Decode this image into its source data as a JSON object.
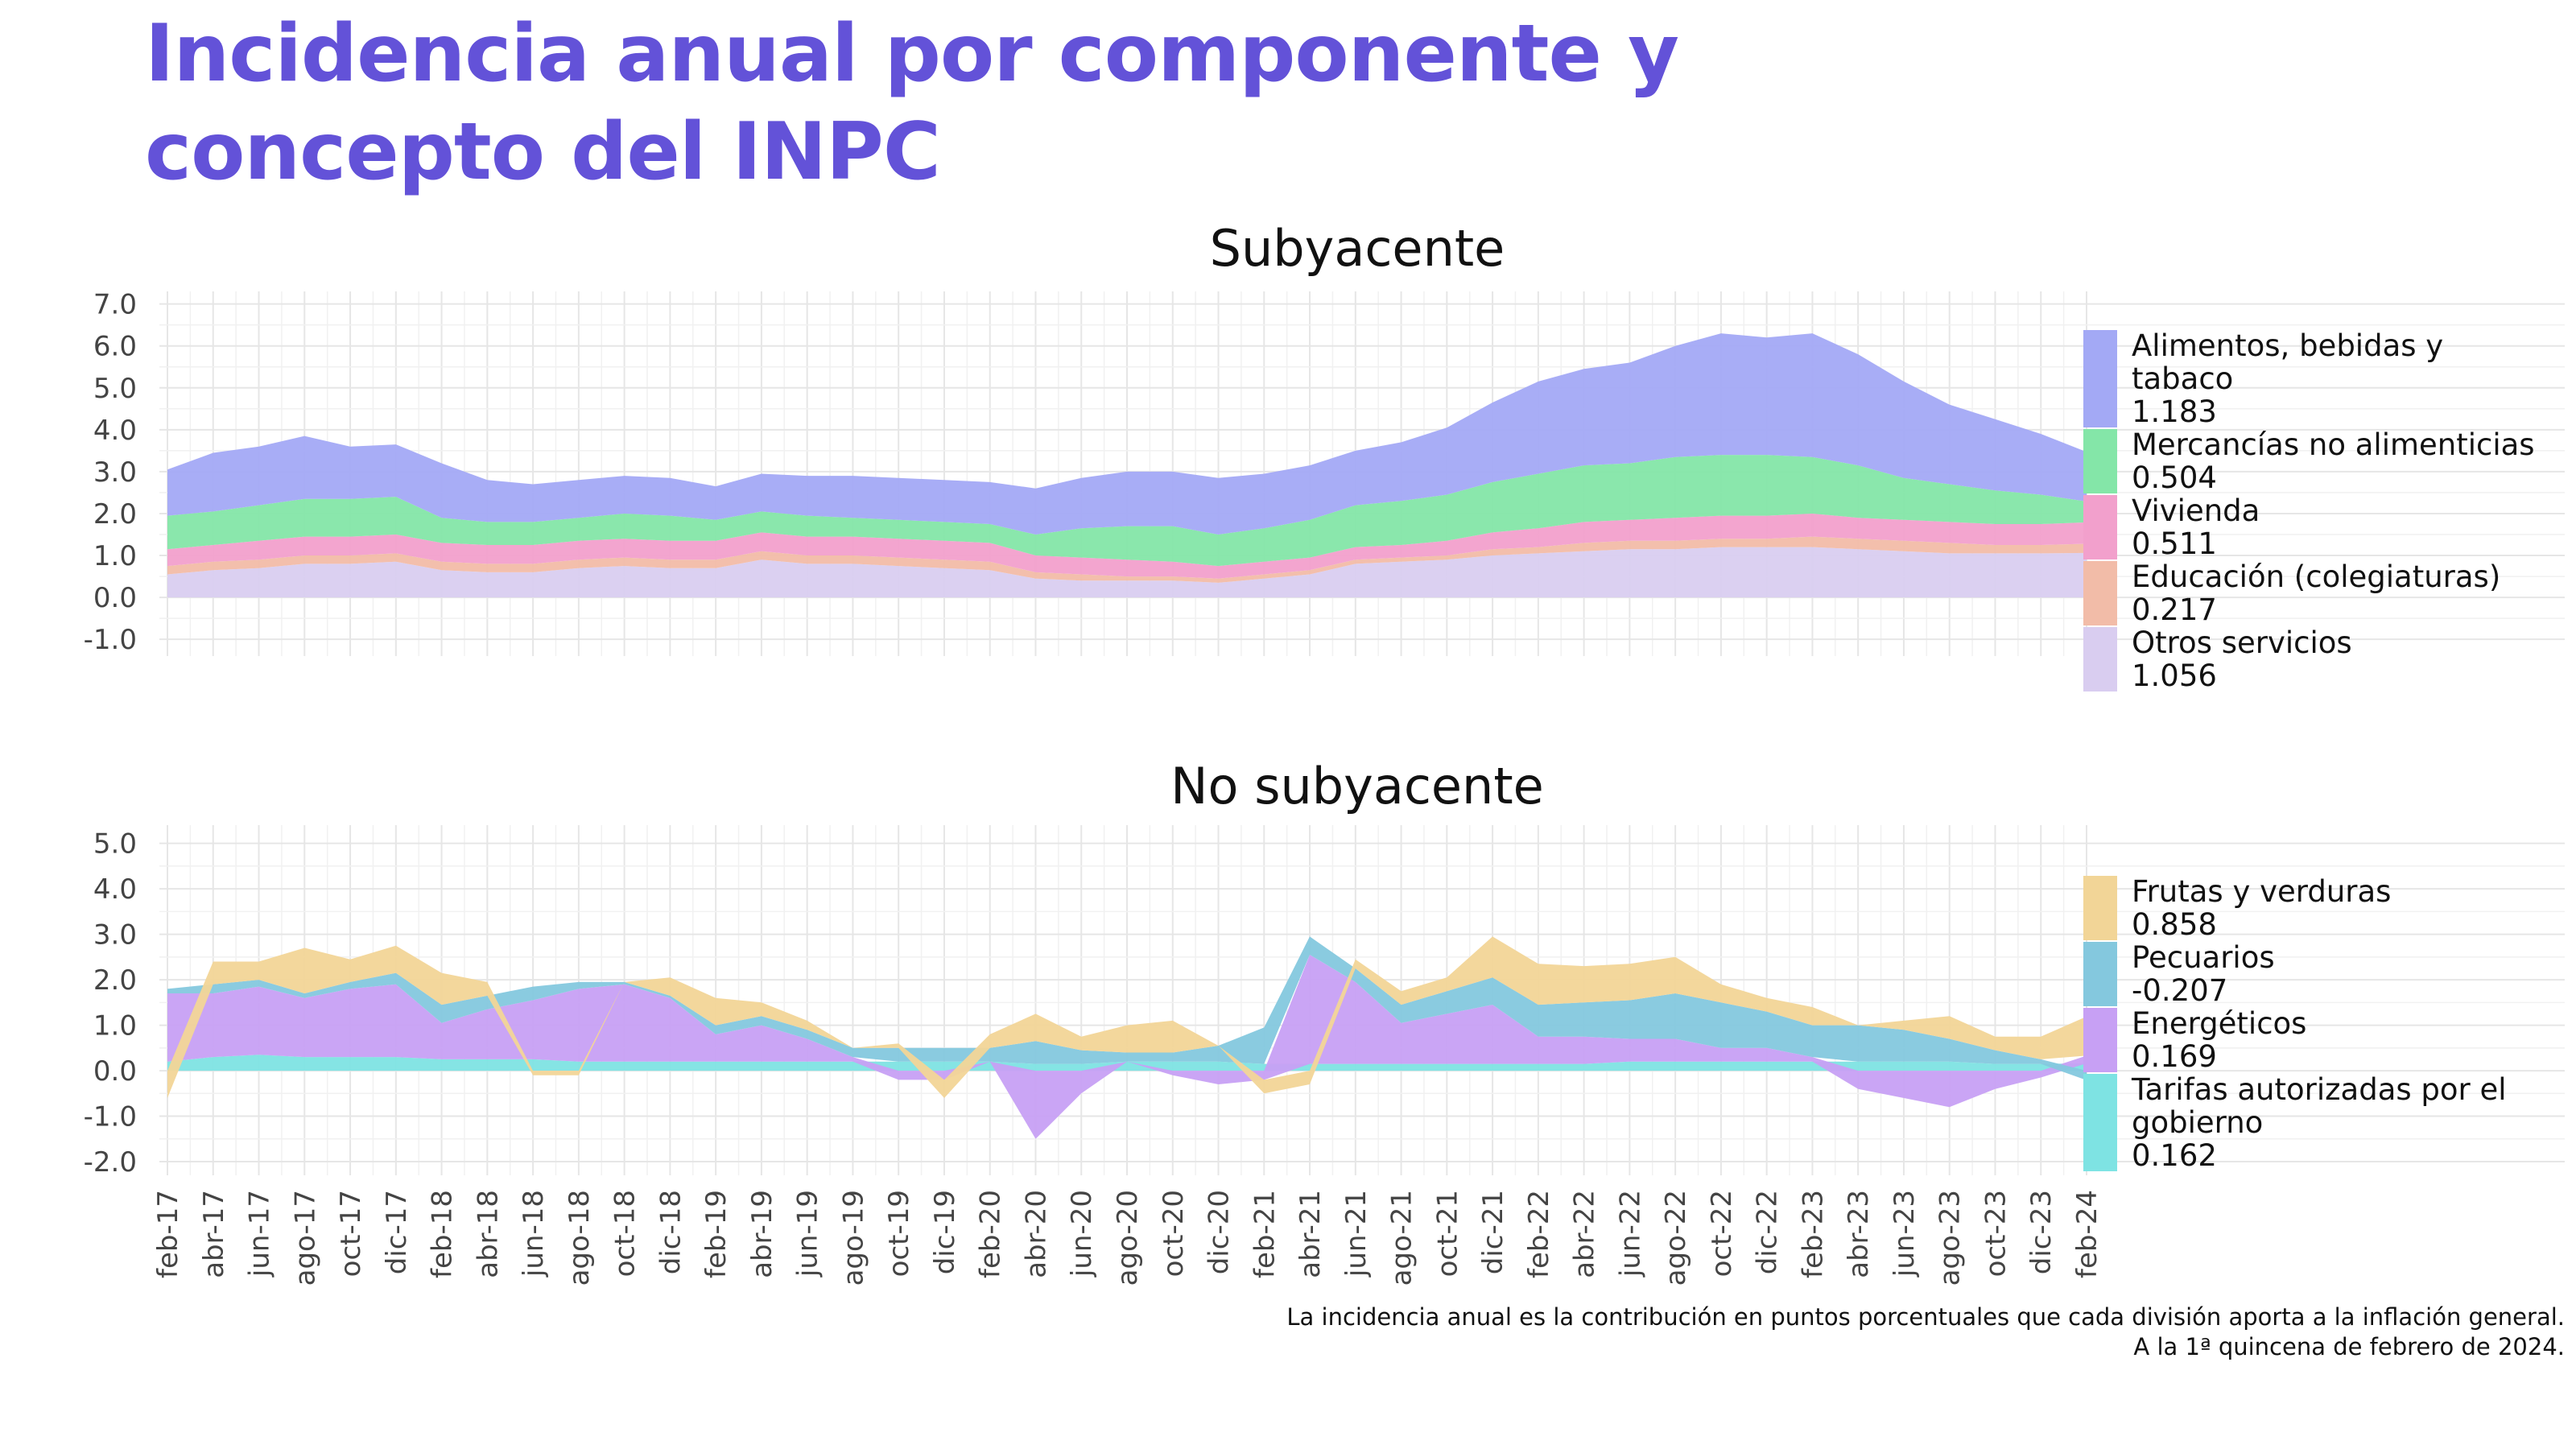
{
  "title": "Incidencia anual por componente y concepto del INPC",
  "title_lines": [
    "Incidencia anual por componente y",
    "concepto del INPC"
  ],
  "caption_lines": [
    "La incidencia anual es la contribución en puntos porcentuales que cada división aporta a la inflación general.",
    "A la 1ª quincena de febrero de 2024."
  ],
  "colors": {
    "title": "#6352d8",
    "grid": "#e6e6e6"
  },
  "x_tick_labels": [
    "feb-17",
    "abr-17",
    "jun-17",
    "ago-17",
    "oct-17",
    "dic-17",
    "feb-18",
    "abr-18",
    "jun-18",
    "ago-18",
    "oct-18",
    "dic-18",
    "feb-19",
    "abr-19",
    "jun-19",
    "ago-19",
    "oct-19",
    "dic-19",
    "feb-20",
    "abr-20",
    "jun-20",
    "ago-20",
    "oct-20",
    "dic-20",
    "feb-21",
    "abr-21",
    "jun-21",
    "ago-21",
    "oct-21",
    "dic-21",
    "feb-22",
    "abr-22",
    "jun-22",
    "ago-22",
    "oct-22",
    "dic-22",
    "feb-23",
    "abr-23",
    "jun-23",
    "ago-23",
    "oct-23",
    "dic-23",
    "feb-24"
  ],
  "chart_data": [
    {
      "type": "area",
      "stacked": true,
      "title": "Subyacente",
      "xlabel": "",
      "ylabel": "",
      "ylim": [
        -1.4,
        7.3
      ],
      "y_ticks": [
        "-1.0",
        "0.0",
        "1.0",
        "2.0",
        "3.0",
        "4.0",
        "5.0",
        "6.0",
        "7.0"
      ],
      "legend_position": "right",
      "grid": true,
      "x": [
        "feb-17",
        "abr-17",
        "jun-17",
        "ago-17",
        "oct-17",
        "dic-17",
        "feb-18",
        "abr-18",
        "jun-18",
        "ago-18",
        "oct-18",
        "dic-18",
        "feb-19",
        "abr-19",
        "jun-19",
        "ago-19",
        "oct-19",
        "dic-19",
        "feb-20",
        "abr-20",
        "jun-20",
        "ago-20",
        "oct-20",
        "dic-20",
        "feb-21",
        "abr-21",
        "jun-21",
        "ago-21",
        "oct-21",
        "dic-21",
        "feb-22",
        "abr-22",
        "jun-22",
        "ago-22",
        "oct-22",
        "dic-22",
        "feb-23",
        "abr-23",
        "jun-23",
        "ago-23",
        "oct-23",
        "dic-23",
        "feb-24"
      ],
      "series": [
        {
          "name": "Otros servicios",
          "final_value": "1.056",
          "color": "#d9cdf0",
          "values": [
            0.55,
            0.65,
            0.7,
            0.8,
            0.8,
            0.85,
            0.65,
            0.6,
            0.6,
            0.7,
            0.75,
            0.7,
            0.7,
            0.9,
            0.8,
            0.8,
            0.75,
            0.7,
            0.65,
            0.45,
            0.4,
            0.4,
            0.4,
            0.35,
            0.45,
            0.55,
            0.8,
            0.85,
            0.9,
            1.0,
            1.05,
            1.1,
            1.15,
            1.15,
            1.2,
            1.2,
            1.2,
            1.15,
            1.1,
            1.05,
            1.05,
            1.05,
            1.06
          ]
        },
        {
          "name": "Educación (colegiaturas)",
          "final_value": "0.217",
          "color": "#f2bca8",
          "values": [
            0.2,
            0.2,
            0.2,
            0.2,
            0.2,
            0.2,
            0.2,
            0.2,
            0.2,
            0.2,
            0.2,
            0.2,
            0.2,
            0.2,
            0.2,
            0.2,
            0.2,
            0.2,
            0.2,
            0.15,
            0.15,
            0.1,
            0.1,
            0.1,
            0.1,
            0.1,
            0.1,
            0.1,
            0.1,
            0.15,
            0.15,
            0.2,
            0.2,
            0.2,
            0.2,
            0.2,
            0.25,
            0.25,
            0.25,
            0.25,
            0.2,
            0.2,
            0.22
          ]
        },
        {
          "name": "Vivienda",
          "final_value": "0.511",
          "color": "#f2a0cc",
          "values": [
            0.4,
            0.4,
            0.45,
            0.45,
            0.45,
            0.45,
            0.45,
            0.45,
            0.45,
            0.45,
            0.45,
            0.45,
            0.45,
            0.45,
            0.45,
            0.45,
            0.45,
            0.45,
            0.45,
            0.4,
            0.4,
            0.4,
            0.35,
            0.3,
            0.3,
            0.3,
            0.3,
            0.3,
            0.35,
            0.4,
            0.45,
            0.5,
            0.5,
            0.55,
            0.55,
            0.55,
            0.55,
            0.5,
            0.5,
            0.5,
            0.5,
            0.5,
            0.51
          ]
        },
        {
          "name": "Mercancías no alimenticias",
          "final_value": "0.504",
          "color": "#84e6a8",
          "values": [
            0.8,
            0.8,
            0.85,
            0.9,
            0.9,
            0.9,
            0.6,
            0.55,
            0.55,
            0.55,
            0.6,
            0.6,
            0.5,
            0.5,
            0.5,
            0.45,
            0.45,
            0.45,
            0.45,
            0.5,
            0.7,
            0.8,
            0.85,
            0.75,
            0.8,
            0.9,
            1.0,
            1.05,
            1.1,
            1.2,
            1.3,
            1.35,
            1.35,
            1.45,
            1.45,
            1.45,
            1.35,
            1.25,
            1.0,
            0.9,
            0.8,
            0.7,
            0.5
          ]
        },
        {
          "name": "Alimentos, bebidas y tabaco",
          "final_value": "1.183",
          "color": "#a3a9f5",
          "values": [
            1.1,
            1.4,
            1.4,
            1.5,
            1.25,
            1.25,
            1.3,
            1.0,
            0.9,
            0.9,
            0.9,
            0.9,
            0.8,
            0.9,
            0.95,
            1.0,
            1.0,
            1.0,
            1.0,
            1.1,
            1.2,
            1.3,
            1.3,
            1.35,
            1.3,
            1.3,
            1.3,
            1.4,
            1.6,
            1.9,
            2.2,
            2.3,
            2.4,
            2.65,
            2.9,
            2.8,
            2.95,
            2.65,
            2.3,
            1.9,
            1.7,
            1.45,
            1.18
          ]
        }
      ]
    },
    {
      "type": "area",
      "stacked": true,
      "title": "No subyacente",
      "xlabel": "",
      "ylabel": "",
      "ylim": [
        -2.3,
        5.4
      ],
      "y_ticks": [
        "-2.0",
        "-1.0",
        "0.0",
        "1.0",
        "2.0",
        "3.0",
        "4.0",
        "5.0"
      ],
      "legend_position": "right",
      "grid": true,
      "x": [
        "feb-17",
        "abr-17",
        "jun-17",
        "ago-17",
        "oct-17",
        "dic-17",
        "feb-18",
        "abr-18",
        "jun-18",
        "ago-18",
        "oct-18",
        "dic-18",
        "feb-19",
        "abr-19",
        "jun-19",
        "ago-19",
        "oct-19",
        "dic-19",
        "feb-20",
        "abr-20",
        "jun-20",
        "ago-20",
        "oct-20",
        "dic-20",
        "feb-21",
        "abr-21",
        "jun-21",
        "ago-21",
        "oct-21",
        "dic-21",
        "feb-22",
        "abr-22",
        "jun-22",
        "ago-22",
        "oct-22",
        "dic-22",
        "feb-23",
        "abr-23",
        "jun-23",
        "ago-23",
        "oct-23",
        "dic-23",
        "feb-24"
      ],
      "series": [
        {
          "name": "Tarifas autorizadas por el gobierno",
          "final_value": "0.162",
          "color": "#7ee3e3",
          "values": [
            0.2,
            0.3,
            0.35,
            0.3,
            0.3,
            0.3,
            0.25,
            0.25,
            0.25,
            0.2,
            0.2,
            0.2,
            0.2,
            0.2,
            0.2,
            0.2,
            0.2,
            0.2,
            0.2,
            0.15,
            0.15,
            0.2,
            0.2,
            0.2,
            0.15,
            0.15,
            0.15,
            0.15,
            0.15,
            0.15,
            0.15,
            0.15,
            0.2,
            0.2,
            0.2,
            0.2,
            0.2,
            0.2,
            0.2,
            0.2,
            0.15,
            0.15,
            0.16
          ]
        },
        {
          "name": "Energéticos",
          "final_value": "0.169",
          "color": "#c7a0f4",
          "values": [
            1.5,
            1.4,
            1.5,
            1.3,
            1.5,
            1.6,
            0.8,
            1.1,
            1.3,
            1.6,
            1.7,
            1.4,
            0.6,
            0.8,
            0.5,
            0.1,
            -0.2,
            -0.2,
            0.0,
            -1.5,
            -0.5,
            0.0,
            -0.1,
            -0.3,
            -0.2,
            2.4,
            1.8,
            0.9,
            1.1,
            1.3,
            0.6,
            0.6,
            0.5,
            0.5,
            0.3,
            0.3,
            0.1,
            -0.4,
            -0.6,
            -0.8,
            -0.4,
            -0.15,
            0.17
          ]
        },
        {
          "name": "Pecuarios",
          "final_value": "-0.207",
          "color": "#84c8de",
          "values": [
            0.1,
            0.2,
            0.15,
            0.1,
            0.15,
            0.25,
            0.4,
            0.3,
            0.3,
            0.15,
            0.05,
            0.05,
            0.2,
            0.2,
            0.2,
            0.2,
            0.3,
            0.3,
            0.3,
            0.5,
            0.3,
            0.2,
            0.2,
            0.35,
            0.8,
            0.4,
            0.3,
            0.4,
            0.5,
            0.6,
            0.7,
            0.75,
            0.85,
            1.0,
            1.0,
            0.8,
            0.7,
            0.8,
            0.7,
            0.5,
            0.3,
            0.1,
            -0.21
          ]
        },
        {
          "name": "Frutas y verduras",
          "final_value": "0.858",
          "color": "#f2d597",
          "values": [
            -0.6,
            0.5,
            0.4,
            1.0,
            0.5,
            0.6,
            0.7,
            0.3,
            -0.1,
            -0.1,
            0.0,
            0.4,
            0.6,
            0.3,
            0.2,
            0.0,
            0.1,
            -0.4,
            0.3,
            0.6,
            0.3,
            0.6,
            0.7,
            0.0,
            -0.3,
            -0.3,
            0.2,
            0.3,
            0.3,
            0.9,
            0.9,
            0.8,
            0.8,
            0.8,
            0.4,
            0.3,
            0.4,
            0.0,
            0.2,
            0.5,
            0.3,
            0.5,
            0.86
          ]
        }
      ]
    }
  ]
}
